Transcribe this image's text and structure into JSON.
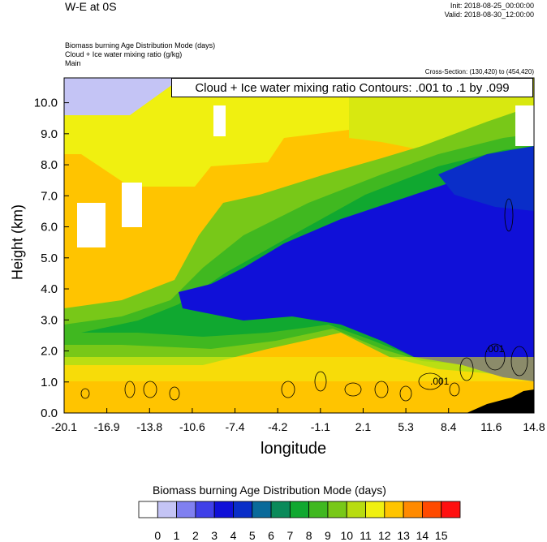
{
  "header": {
    "title": "W-E at 0S",
    "init": "Init: 2018-08-25_00:00:00",
    "valid": "Valid: 2018-08-30_12:00:00",
    "vars": [
      "Biomass burning Age Distribution Mode   (days)",
      "Cloud + Ice water mixing ratio   (g/kg)",
      "Main"
    ],
    "cross_section": "Cross-Section: (130,420) to (454,420)"
  },
  "contour_note": "Cloud + Ice water mixing ratio Contours: .001 to .1 by .099",
  "contour_labels": [
    ".001",
    ".001"
  ],
  "colorbar": {
    "title": "Biomass burning Age Distribution Mode  (days)",
    "labels": [
      "0",
      "1",
      "2",
      "3",
      "4",
      "5",
      "6",
      "7",
      "8",
      "9",
      "10",
      "11",
      "12",
      "13",
      "14",
      "15"
    ],
    "colors": [
      "#ffffff",
      "#c4c4f5",
      "#8080f0",
      "#4040e8",
      "#1010d8",
      "#0a2ec8",
      "#0a6a9a",
      "#0a8a5a",
      "#10a830",
      "#40b820",
      "#78c818",
      "#b8dc10",
      "#f0f010",
      "#ffc400",
      "#ff8a00",
      "#ff4a00",
      "#ff1010"
    ]
  },
  "chart_data": {
    "type": "heatmap",
    "xlabel": "longitude",
    "ylabel": "Height (km)",
    "x_ticks": [
      "-20.1",
      "-16.9",
      "-13.8",
      "-10.6",
      "-7.4",
      "-4.2",
      "-1.1",
      "2.1",
      "5.3",
      "8.4",
      "11.6",
      "14.8"
    ],
    "y_ticks": [
      "0.0",
      "1.0",
      "2.0",
      "3.0",
      "4.0",
      "5.0",
      "6.0",
      "7.0",
      "8.0",
      "9.0",
      "10.0"
    ],
    "xlim": [
      -20.1,
      14.8
    ],
    "ylim": [
      0,
      10.8
    ],
    "description_regions": {
      "background_days": 13,
      "upper_left_days": 1,
      "plume_core_days": 4,
      "plume_edge_days": 8
    }
  }
}
